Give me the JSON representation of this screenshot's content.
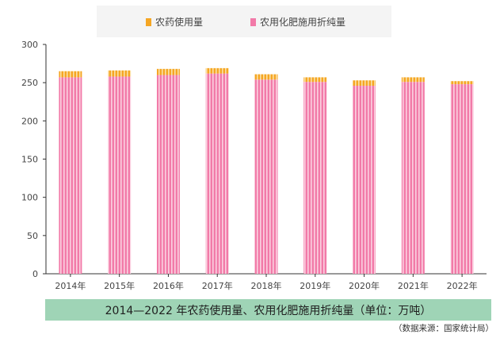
{
  "chart_data": {
    "type": "bar",
    "stacked": true,
    "categories": [
      "2014年",
      "2015年",
      "2016年",
      "2017年",
      "2018年",
      "2019年",
      "2020年",
      "2021年",
      "2022年"
    ],
    "series": [
      {
        "name": "农药使用量",
        "color": "#f5a623",
        "values": [
          8,
          8,
          8,
          7,
          7,
          6,
          7,
          6,
          4
        ]
      },
      {
        "name": "农用化肥施用折纯量",
        "color": "#f27aa8",
        "values": [
          257,
          258,
          260,
          262,
          254,
          251,
          246,
          251,
          248
        ]
      }
    ],
    "ylim": [
      0,
      300
    ],
    "yticks": [
      0,
      50,
      100,
      150,
      200,
      250,
      300
    ],
    "grid": false,
    "legend_position": "top"
  },
  "caption": "2014—2022 年农药使用量、农用化肥施用折纯量（单位：万吨）",
  "source": "（数据来源：国家统计局）"
}
